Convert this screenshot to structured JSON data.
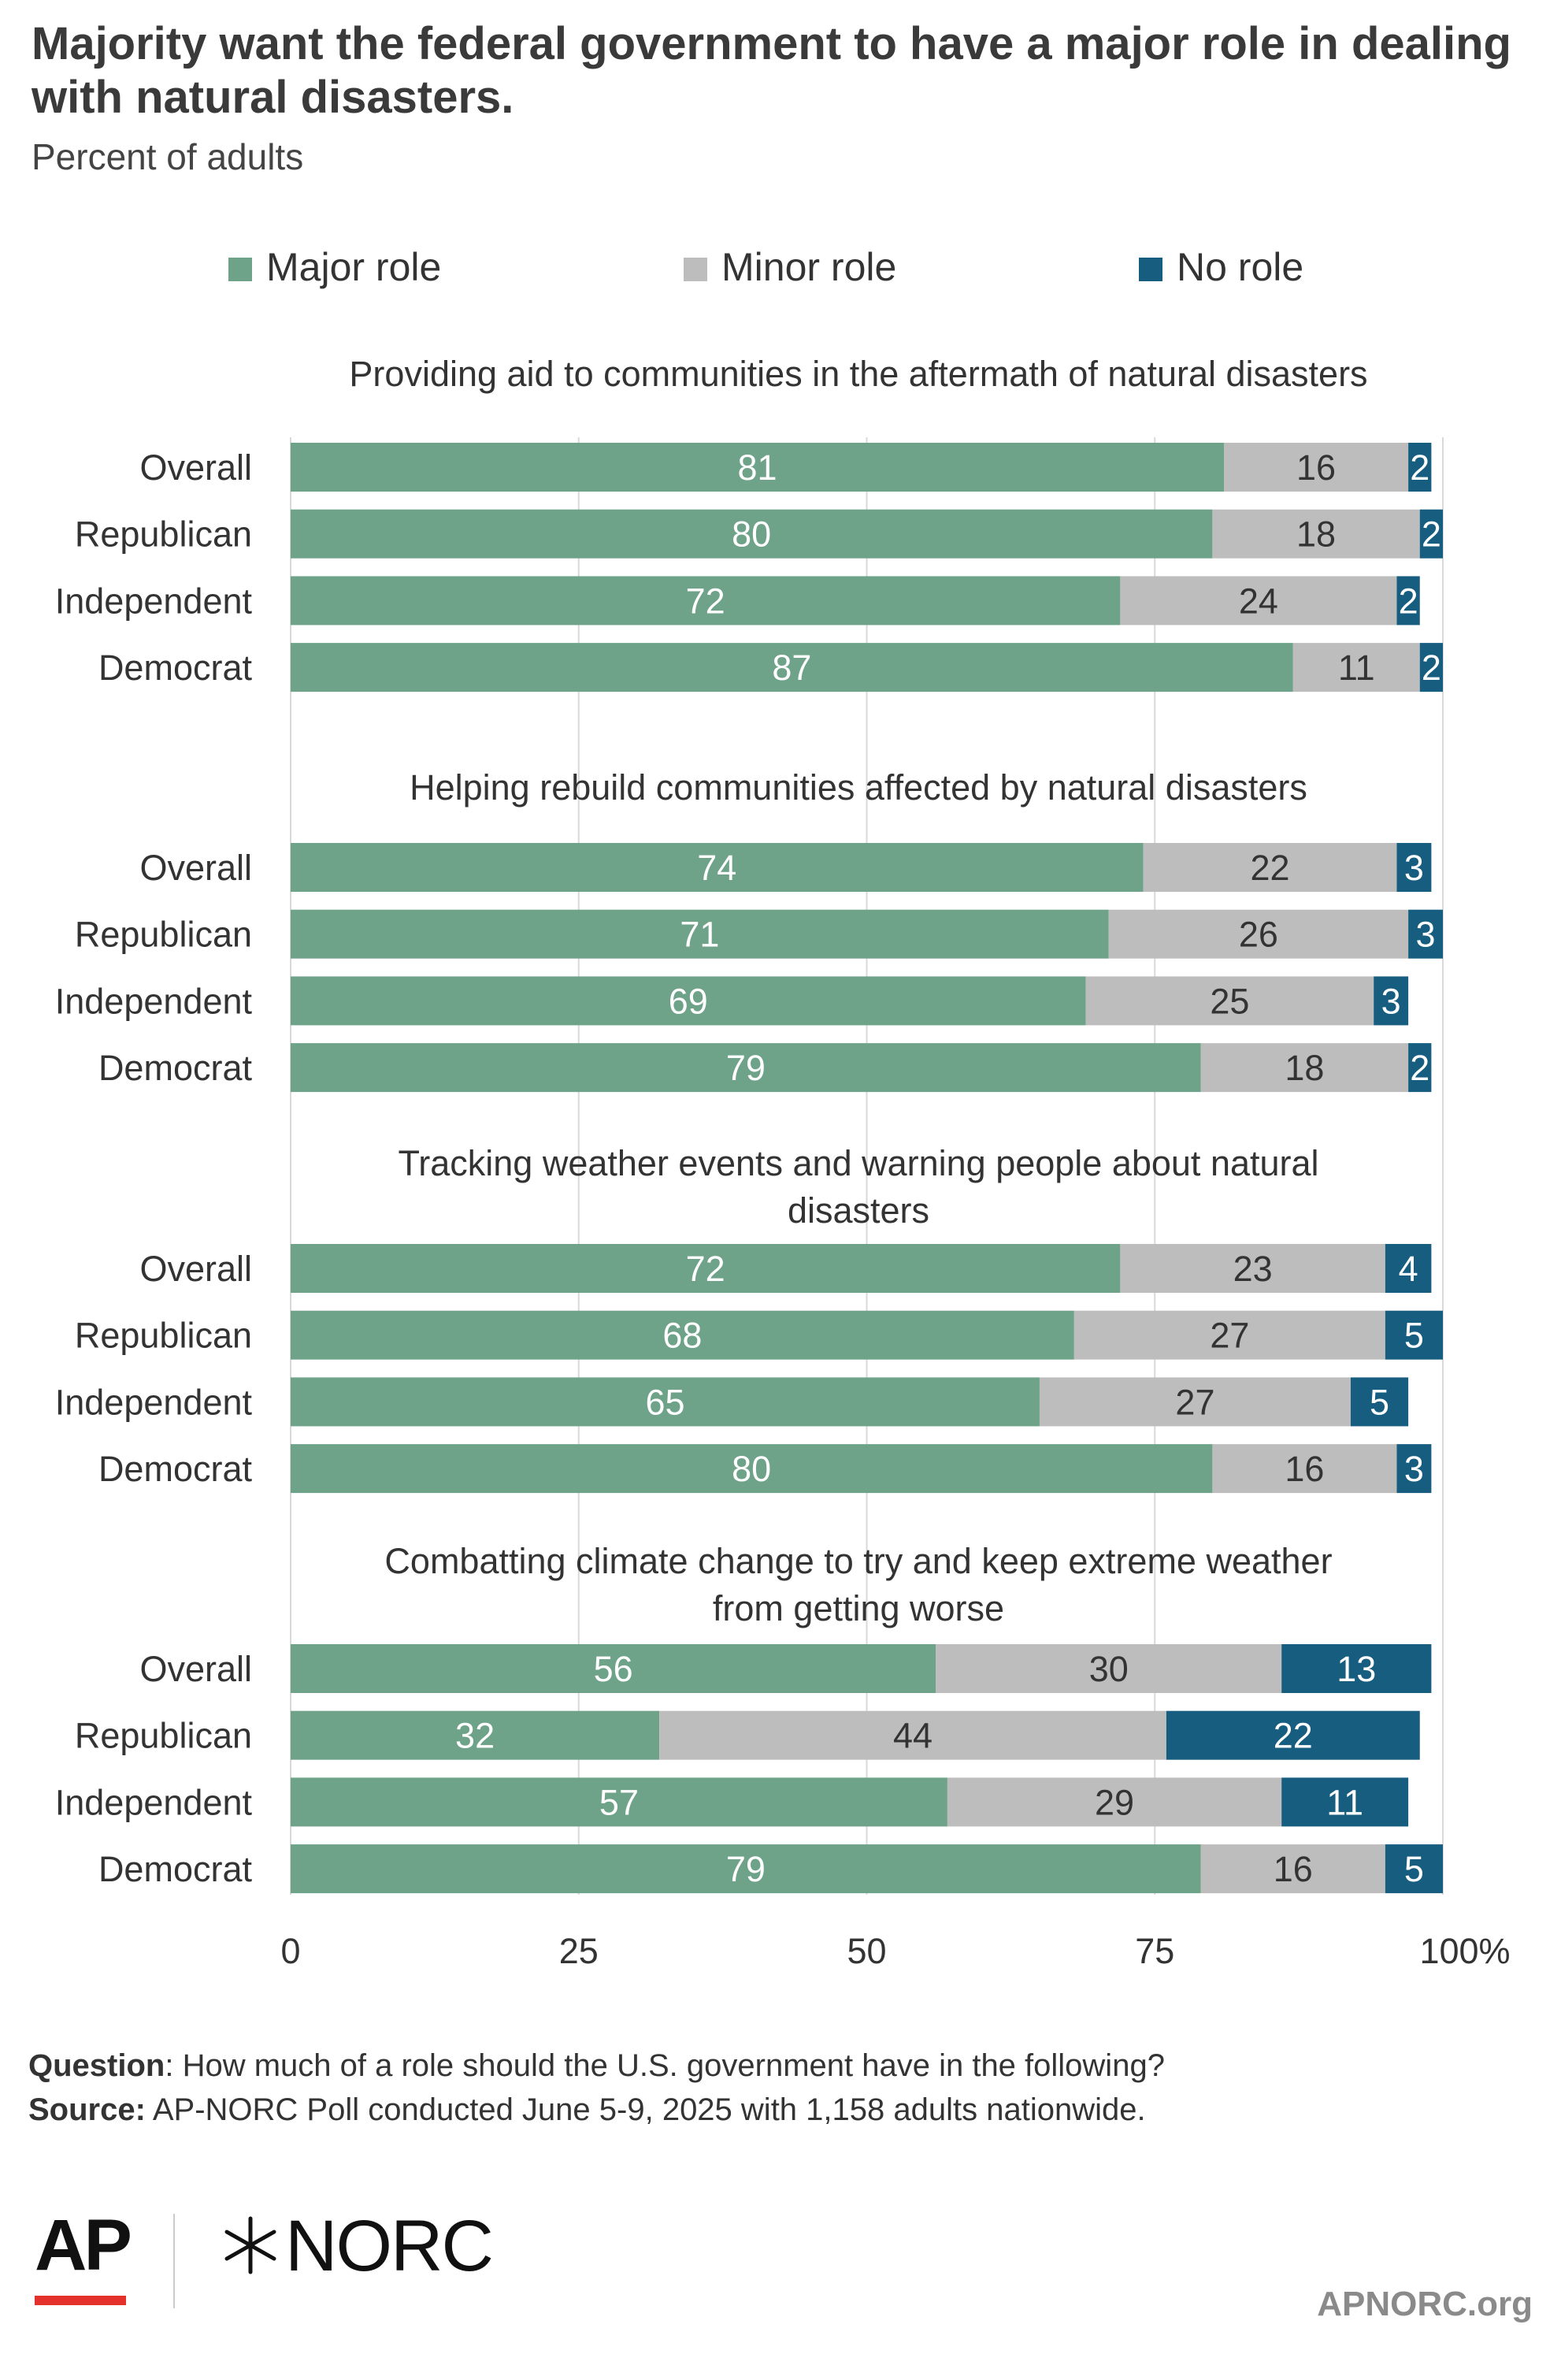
{
  "title": "Majority want the federal government to have a major role in dealing with natural disasters.",
  "subtitle": "Percent of adults",
  "colors": {
    "major": "#6ea38a",
    "minor": "#bdbdbd",
    "none": "#165d80",
    "grid": "#d9d9d9",
    "ap_red": "#e5312b"
  },
  "chart_data": {
    "type": "bar",
    "orientation": "horizontal",
    "stacked": true,
    "xlim": [
      0,
      100
    ],
    "x_ticks": [
      "0",
      "25",
      "50",
      "75",
      "100%"
    ],
    "grid": true,
    "legend": {
      "placement": "top",
      "items": [
        {
          "key": "major",
          "label": "Major role"
        },
        {
          "key": "minor",
          "label": "Minor role"
        },
        {
          "key": "none",
          "label": "No role"
        }
      ]
    },
    "groups": [
      {
        "title": "Providing aid to communities in the aftermath of natural disasters",
        "rows": [
          {
            "label": "Overall",
            "major": 81,
            "minor": 16,
            "none": 2
          },
          {
            "label": "Republican",
            "major": 80,
            "minor": 18,
            "none": 2
          },
          {
            "label": "Independent",
            "major": 72,
            "minor": 24,
            "none": 2
          },
          {
            "label": "Democrat",
            "major": 87,
            "minor": 11,
            "none": 2
          }
        ]
      },
      {
        "title": "Helping rebuild communities affected by natural disasters",
        "rows": [
          {
            "label": "Overall",
            "major": 74,
            "minor": 22,
            "none": 3
          },
          {
            "label": "Republican",
            "major": 71,
            "minor": 26,
            "none": 3
          },
          {
            "label": "Independent",
            "major": 69,
            "minor": 25,
            "none": 3
          },
          {
            "label": "Democrat",
            "major": 79,
            "minor": 18,
            "none": 2
          }
        ]
      },
      {
        "title": "Tracking weather events and warning people about natural disasters",
        "title_lines": [
          "Tracking weather events and warning people about natural",
          "disasters"
        ],
        "rows": [
          {
            "label": "Overall",
            "major": 72,
            "minor": 23,
            "none": 4
          },
          {
            "label": "Republican",
            "major": 68,
            "minor": 27,
            "none": 5
          },
          {
            "label": "Independent",
            "major": 65,
            "minor": 27,
            "none": 5
          },
          {
            "label": "Democrat",
            "major": 80,
            "minor": 16,
            "none": 3
          }
        ]
      },
      {
        "title": "Combatting climate change to try and keep extreme weather from getting worse",
        "title_lines": [
          "Combatting climate change to try and keep extreme weather",
          "from getting worse"
        ],
        "rows": [
          {
            "label": "Overall",
            "major": 56,
            "minor": 30,
            "none": 13
          },
          {
            "label": "Republican",
            "major": 32,
            "minor": 44,
            "none": 22
          },
          {
            "label": "Independent",
            "major": 57,
            "minor": 29,
            "none": 11
          },
          {
            "label": "Democrat",
            "major": 79,
            "minor": 16,
            "none": 5
          }
        ]
      }
    ]
  },
  "footnotes": {
    "question_label": "Question",
    "question_text": ": How much of a role should the U.S. government have in the following?",
    "source_label": "Source:",
    "source_text": " AP-NORC Poll conducted June 5-9, 2025 with 1,158 adults nationwide."
  },
  "logos": {
    "ap": "AP",
    "norc": "NORC"
  },
  "site": "APNORC.org"
}
